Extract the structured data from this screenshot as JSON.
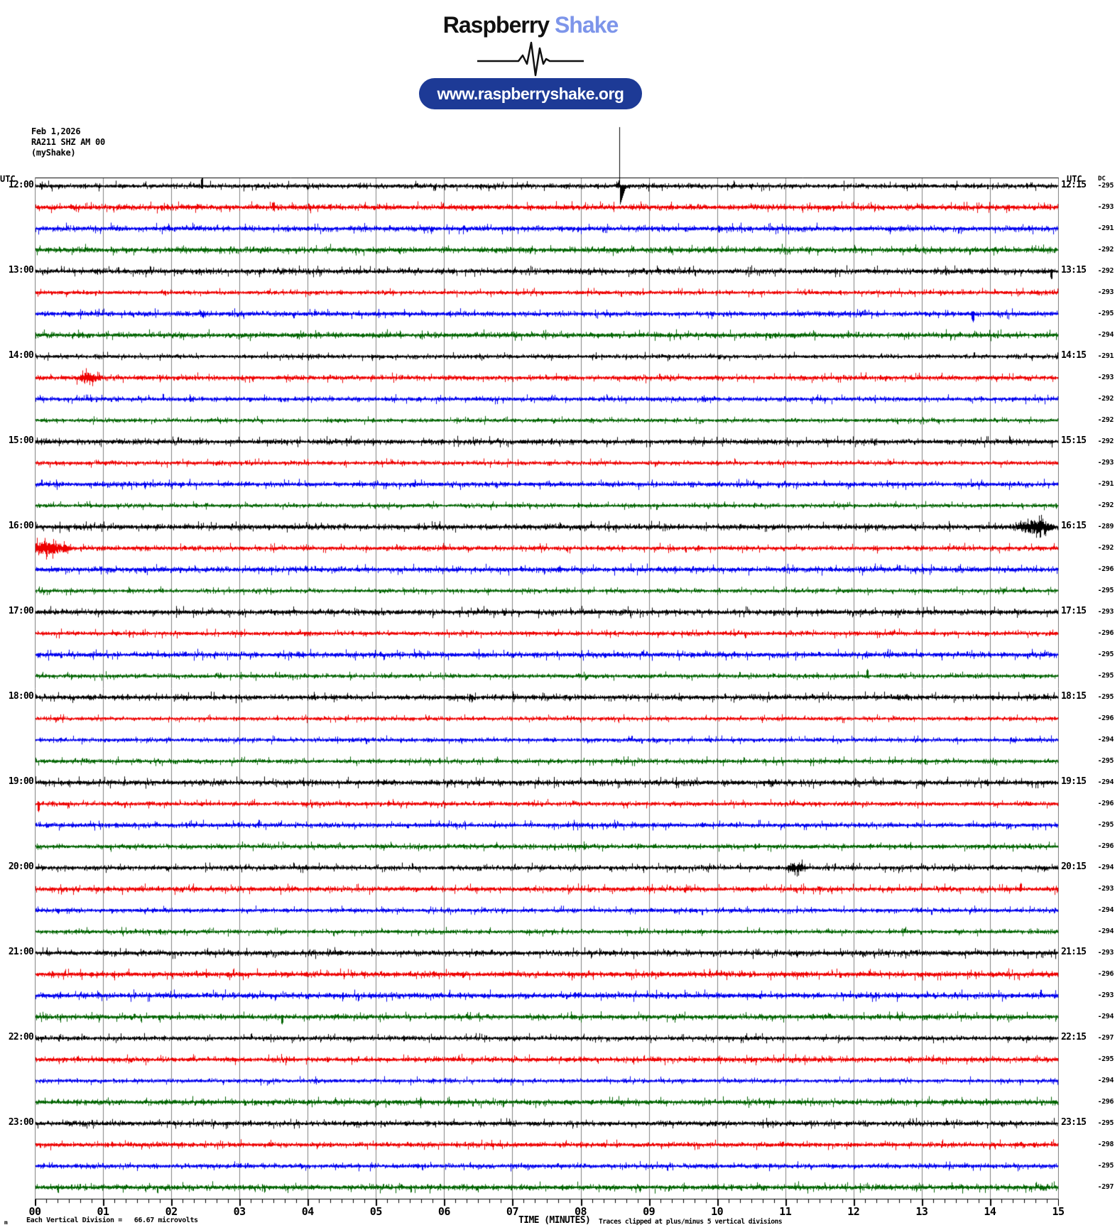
{
  "header": {
    "logo_text_1": "Raspberry",
    "logo_text_2": "Shake",
    "logo_color_2": "#7d95ea",
    "url_button_label": "www.raspberryshake.org",
    "url_button_bg": "#1d3a96"
  },
  "station_info": {
    "date": "Feb 1,2026",
    "station": "RA211 SHZ AM 00",
    "network": "(myShake)"
  },
  "plot": {
    "utc_left_header": "UTC",
    "utc_right_header": "UTC",
    "dc_header": "DC",
    "hours_left": [
      "12:00",
      "13:00",
      "14:00",
      "15:00",
      "16:00",
      "17:00",
      "18:00",
      "19:00",
      "20:00",
      "21:00",
      "22:00",
      "23:00"
    ],
    "hours_right": [
      "12:15",
      "13:15",
      "14:15",
      "15:15",
      "16:15",
      "17:15",
      "18:15",
      "19:15",
      "20:15",
      "21:15",
      "22:15",
      "23:15"
    ],
    "x_tick_labels": [
      "00",
      "01",
      "02",
      "03",
      "04",
      "05",
      "06",
      "07",
      "08",
      "09",
      "10",
      "11",
      "12",
      "13",
      "14",
      "15"
    ],
    "x_axis_title": "TIME (MINUTES)",
    "clip_note": "Traces clipped at plus/minus 5 vertical divisions",
    "scale_note": "Each Vertical Division =   66.67 microvolts",
    "corner_glyph": "m",
    "grid_color": "#808080",
    "border_color": "#000000",
    "trace_colors": [
      "#000000",
      "#ee0000",
      "#0000ee",
      "#006400"
    ]
  },
  "chart_data": {
    "type": "line",
    "subtype": "helicorder_seismogram",
    "station_label": "RA211 SHZ AM 00 (myShake)",
    "date": "Feb 1,2026",
    "x_range_minutes": [
      0,
      15
    ],
    "minutes_per_row": 15,
    "rows_per_hour": 4,
    "x_minor_tick_seconds": 10,
    "vertical_division_microvolts": 66.67,
    "clip_divisions": 5,
    "rows": [
      {
        "utc": "12:00",
        "dc": -295
      },
      {
        "utc": "12:15",
        "dc": -293
      },
      {
        "utc": "12:30",
        "dc": -291
      },
      {
        "utc": "12:45",
        "dc": -292
      },
      {
        "utc": "13:00",
        "dc": -292
      },
      {
        "utc": "13:15",
        "dc": -293
      },
      {
        "utc": "13:30",
        "dc": -295
      },
      {
        "utc": "13:45",
        "dc": -294
      },
      {
        "utc": "14:00",
        "dc": -291
      },
      {
        "utc": "14:15",
        "dc": -293
      },
      {
        "utc": "14:30",
        "dc": -292
      },
      {
        "utc": "14:45",
        "dc": -292
      },
      {
        "utc": "15:00",
        "dc": -292
      },
      {
        "utc": "15:15",
        "dc": -293
      },
      {
        "utc": "15:30",
        "dc": -291
      },
      {
        "utc": "15:45",
        "dc": -292
      },
      {
        "utc": "16:00",
        "dc": -289
      },
      {
        "utc": "16:15",
        "dc": -292
      },
      {
        "utc": "16:30",
        "dc": -296
      },
      {
        "utc": "16:45",
        "dc": -295
      },
      {
        "utc": "17:00",
        "dc": -293
      },
      {
        "utc": "17:15",
        "dc": -296
      },
      {
        "utc": "17:30",
        "dc": -295
      },
      {
        "utc": "17:45",
        "dc": -295
      },
      {
        "utc": "18:00",
        "dc": -295
      },
      {
        "utc": "18:15",
        "dc": -296
      },
      {
        "utc": "18:30",
        "dc": -294
      },
      {
        "utc": "18:45",
        "dc": -295
      },
      {
        "utc": "19:00",
        "dc": -294
      },
      {
        "utc": "19:15",
        "dc": -296
      },
      {
        "utc": "19:30",
        "dc": -295
      },
      {
        "utc": "19:45",
        "dc": -296
      },
      {
        "utc": "20:00",
        "dc": -294
      },
      {
        "utc": "20:15",
        "dc": -293
      },
      {
        "utc": "20:30",
        "dc": -294
      },
      {
        "utc": "20:45",
        "dc": -294
      },
      {
        "utc": "21:00",
        "dc": -293
      },
      {
        "utc": "21:15",
        "dc": -296
      },
      {
        "utc": "21:30",
        "dc": -293
      },
      {
        "utc": "21:45",
        "dc": -294
      },
      {
        "utc": "22:00",
        "dc": -297
      },
      {
        "utc": "22:15",
        "dc": -295
      },
      {
        "utc": "22:30",
        "dc": -294
      },
      {
        "utc": "22:45",
        "dc": -296
      },
      {
        "utc": "23:00",
        "dc": -295
      },
      {
        "utc": "23:15",
        "dc": -298
      },
      {
        "utc": "23:30",
        "dc": -295
      },
      {
        "utc": "23:45",
        "dc": -297
      }
    ],
    "events": [
      {
        "row": 0,
        "minute": 2.45,
        "type": "spike",
        "up": 13,
        "down": 4
      },
      {
        "row": 0,
        "minute": 8.56,
        "type": "major_spike",
        "up": 83,
        "down": 28
      },
      {
        "row": 1,
        "minute": 3.5,
        "type": "spike",
        "up": 8,
        "down": 4
      },
      {
        "row": 4,
        "minute": 14.9,
        "type": "spike",
        "up": 3,
        "down": 12
      },
      {
        "row": 6,
        "minute": 13.75,
        "type": "spike",
        "up": 4,
        "down": 12
      },
      {
        "row": 9,
        "minute": 0.78,
        "type": "burst",
        "halfwidth_min": 0.18,
        "mult": 2.2
      },
      {
        "row": 16,
        "minute": 14.65,
        "type": "burst",
        "halfwidth_min": 0.3,
        "mult": 2.8
      },
      {
        "row": 17,
        "minute": 0.2,
        "type": "burst",
        "halfwidth_min": 0.35,
        "mult": 2.8
      },
      {
        "row": 23,
        "minute": 12.2,
        "type": "spike",
        "up": 10,
        "down": 3
      },
      {
        "row": 29,
        "minute": 0.05,
        "type": "spike",
        "up": 3,
        "down": 12
      },
      {
        "row": 32,
        "minute": 11.15,
        "type": "burst",
        "halfwidth_min": 0.15,
        "mult": 2.2
      },
      {
        "row": 33,
        "minute": 14.45,
        "type": "spike",
        "up": 9,
        "down": 3
      },
      {
        "row": 39,
        "minute": 3.62,
        "type": "spike",
        "up": 3,
        "down": 11
      }
    ]
  }
}
